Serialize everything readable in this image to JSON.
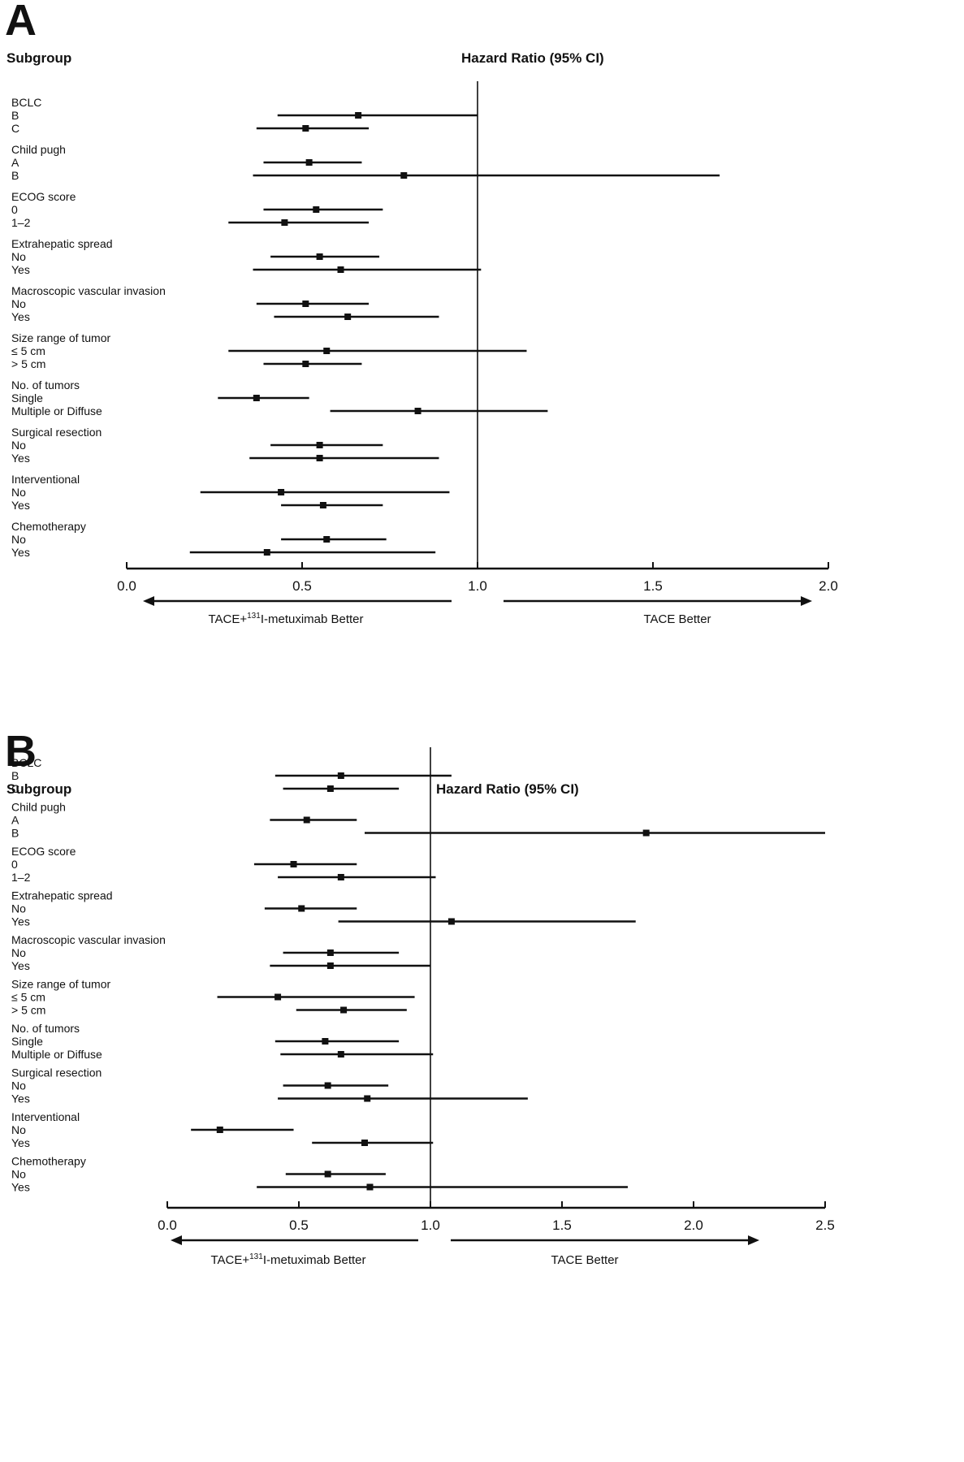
{
  "chart_data": [
    {
      "type": "forest",
      "panel_label": "A",
      "subgroup_header": "Subgroup",
      "hr_header": "Hazard Ratio (95% CI)",
      "xlim": [
        0.0,
        2.0
      ],
      "xticks": [
        "0.0",
        "0.5",
        "1.0",
        "1.5",
        "2.0"
      ],
      "reference_line": 1.0,
      "left_arrow_label_pre": "TACE+",
      "left_arrow_label_sup": "131",
      "left_arrow_label_post": "I-metuximab Better",
      "right_arrow_label": "TACE Better",
      "groups": [
        {
          "name": "BCLC",
          "rows": [
            {
              "label": "B",
              "hr": 0.66,
              "lo": 0.43,
              "hi": 1.0
            },
            {
              "label": "C",
              "hr": 0.51,
              "lo": 0.37,
              "hi": 0.69
            }
          ]
        },
        {
          "name": "Child pugh",
          "rows": [
            {
              "label": "A",
              "hr": 0.52,
              "lo": 0.39,
              "hi": 0.67
            },
            {
              "label": "B",
              "hr": 0.79,
              "lo": 0.36,
              "hi": 1.69
            }
          ]
        },
        {
          "name": "ECOG score",
          "rows": [
            {
              "label": "0",
              "hr": 0.54,
              "lo": 0.39,
              "hi": 0.73
            },
            {
              "label": "1–2",
              "hr": 0.45,
              "lo": 0.29,
              "hi": 0.69
            }
          ]
        },
        {
          "name": "Extrahepatic spread",
          "rows": [
            {
              "label": "No",
              "hr": 0.55,
              "lo": 0.41,
              "hi": 0.72
            },
            {
              "label": "Yes",
              "hr": 0.61,
              "lo": 0.36,
              "hi": 1.01
            }
          ]
        },
        {
          "name": "Macroscopic vascular invasion",
          "rows": [
            {
              "label": "No",
              "hr": 0.51,
              "lo": 0.37,
              "hi": 0.69
            },
            {
              "label": "Yes",
              "hr": 0.63,
              "lo": 0.42,
              "hi": 0.89
            }
          ]
        },
        {
          "name": "Size range of tumor",
          "rows": [
            {
              "label": "≤  5 cm",
              "hr": 0.57,
              "lo": 0.29,
              "hi": 1.14
            },
            {
              "label": ">  5 cm",
              "hr": 0.51,
              "lo": 0.39,
              "hi": 0.67
            }
          ]
        },
        {
          "name": "No. of tumors",
          "rows": [
            {
              "label": "Single",
              "hr": 0.37,
              "lo": 0.26,
              "hi": 0.52
            },
            {
              "label": "Multiple or Diffuse",
              "hr": 0.83,
              "lo": 0.58,
              "hi": 1.2
            }
          ]
        },
        {
          "name": "Surgical resection",
          "rows": [
            {
              "label": "No",
              "hr": 0.55,
              "lo": 0.41,
              "hi": 0.73
            },
            {
              "label": "Yes",
              "hr": 0.55,
              "lo": 0.35,
              "hi": 0.89
            }
          ]
        },
        {
          "name": "Interventional",
          "rows": [
            {
              "label": "No",
              "hr": 0.44,
              "lo": 0.21,
              "hi": 0.92
            },
            {
              "label": "Yes",
              "hr": 0.56,
              "lo": 0.44,
              "hi": 0.73
            }
          ]
        },
        {
          "name": "Chemotherapy",
          "rows": [
            {
              "label": "No",
              "hr": 0.57,
              "lo": 0.44,
              "hi": 0.74
            },
            {
              "label": "Yes",
              "hr": 0.4,
              "lo": 0.18,
              "hi": 0.88
            }
          ]
        }
      ]
    },
    {
      "type": "forest",
      "panel_label": "B",
      "subgroup_header": "Subgroup",
      "hr_header": "Hazard Ratio (95% CI)",
      "xlim": [
        0.0,
        2.5
      ],
      "xticks": [
        "0.0",
        "0.5",
        "1.0",
        "1.5",
        "2.0",
        "2.5"
      ],
      "reference_line": 1.0,
      "left_arrow_label_pre": "TACE+",
      "left_arrow_label_sup": "131",
      "left_arrow_label_post": "I-metuximab Better",
      "right_arrow_label": "TACE Better",
      "groups": [
        {
          "name": "BCLC",
          "rows": [
            {
              "label": "B",
              "hr": 0.66,
              "lo": 0.41,
              "hi": 1.08
            },
            {
              "label": "C",
              "hr": 0.62,
              "lo": 0.44,
              "hi": 0.88
            }
          ]
        },
        {
          "name": "Child pugh",
          "rows": [
            {
              "label": "A",
              "hr": 0.53,
              "lo": 0.39,
              "hi": 0.72
            },
            {
              "label": "B",
              "hr": 1.82,
              "lo": 0.75,
              "hi": 2.5
            }
          ]
        },
        {
          "name": "ECOG score",
          "rows": [
            {
              "label": "0",
              "hr": 0.48,
              "lo": 0.33,
              "hi": 0.72
            },
            {
              "label": "1–2",
              "hr": 0.66,
              "lo": 0.42,
              "hi": 1.02
            }
          ]
        },
        {
          "name": "Extrahepatic spread",
          "rows": [
            {
              "label": "No",
              "hr": 0.51,
              "lo": 0.37,
              "hi": 0.72
            },
            {
              "label": "Yes",
              "hr": 1.08,
              "lo": 0.65,
              "hi": 1.78
            }
          ]
        },
        {
          "name": "Macroscopic vascular invasion",
          "rows": [
            {
              "label": "No",
              "hr": 0.62,
              "lo": 0.44,
              "hi": 0.88
            },
            {
              "label": "Yes",
              "hr": 0.62,
              "lo": 0.39,
              "hi": 1.0
            }
          ]
        },
        {
          "name": "Size range of tumor",
          "rows": [
            {
              "label": "≤  5 cm",
              "hr": 0.42,
              "lo": 0.19,
              "hi": 0.94
            },
            {
              "label": ">  5 cm",
              "hr": 0.67,
              "lo": 0.49,
              "hi": 0.91
            }
          ]
        },
        {
          "name": "No. of tumors",
          "rows": [
            {
              "label": "Single",
              "hr": 0.6,
              "lo": 0.41,
              "hi": 0.88
            },
            {
              "label": "Multiple or Diffuse",
              "hr": 0.66,
              "lo": 0.43,
              "hi": 1.01
            }
          ]
        },
        {
          "name": "Surgical resection",
          "rows": [
            {
              "label": "No",
              "hr": 0.61,
              "lo": 0.44,
              "hi": 0.84
            },
            {
              "label": "Yes",
              "hr": 0.76,
              "lo": 0.42,
              "hi": 1.37
            }
          ]
        },
        {
          "name": "Interventional",
          "rows": [
            {
              "label": "No",
              "hr": 0.2,
              "lo": 0.09,
              "hi": 0.48
            },
            {
              "label": "Yes",
              "hr": 0.75,
              "lo": 0.55,
              "hi": 1.01
            }
          ]
        },
        {
          "name": "Chemotherapy",
          "rows": [
            {
              "label": "No",
              "hr": 0.61,
              "lo": 0.45,
              "hi": 0.83
            },
            {
              "label": "Yes",
              "hr": 0.77,
              "lo": 0.34,
              "hi": 1.75
            }
          ]
        }
      ]
    }
  ]
}
